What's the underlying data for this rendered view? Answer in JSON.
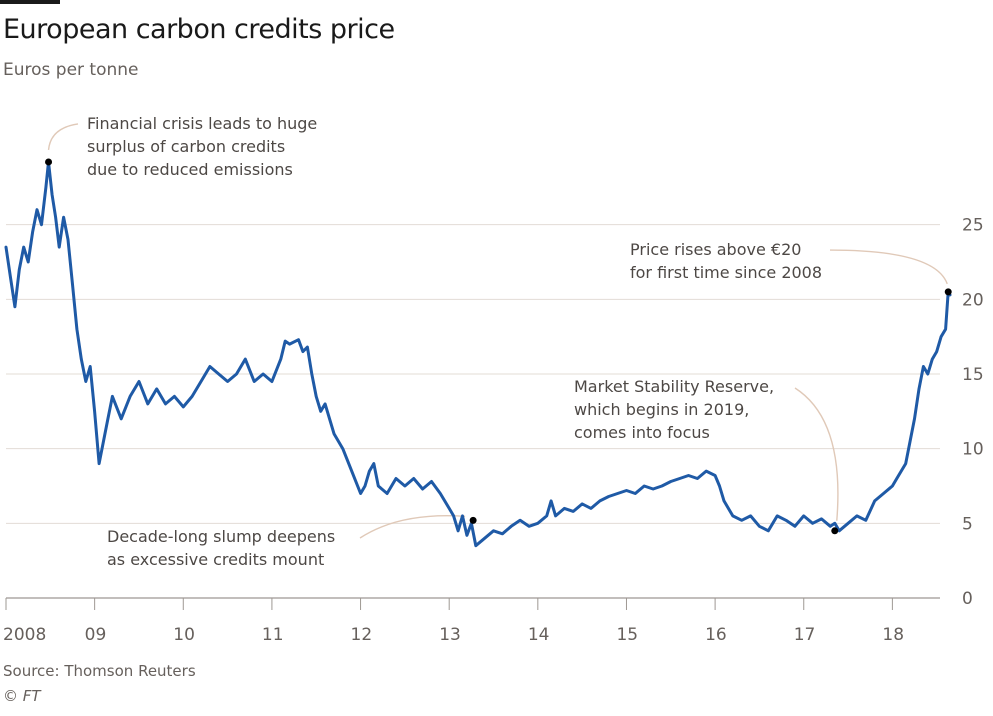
{
  "title": "European carbon credits price",
  "subtitle": "Euros per tonne",
  "source": "Source: Thomson Reuters",
  "copyright": "© FT",
  "colors": {
    "line": "#1f5aa6",
    "grid": "#e3dcd6",
    "axis": "#9e9893",
    "text": "#66605c",
    "annotation_arrow": "#e0c9b8",
    "marker": "#000000"
  },
  "chart_data": {
    "type": "line",
    "title": "European carbon credits price",
    "subtitle": "Euros per tonne",
    "xlabel": "",
    "ylabel": "Euros per tonne",
    "x_tick_labels": [
      "2008",
      "09",
      "10",
      "11",
      "12",
      "13",
      "14",
      "15",
      "16",
      "17",
      "18"
    ],
    "x_tick_values": [
      2008,
      2009,
      2010,
      2011,
      2012,
      2013,
      2014,
      2015,
      2016,
      2017,
      2018
    ],
    "y_ticks": [
      0,
      5,
      10,
      15,
      20,
      25
    ],
    "ylim": [
      0,
      30
    ],
    "xlim": [
      2008.0,
      2018.65
    ],
    "grid": true,
    "series": [
      {
        "name": "",
        "x": [
          2008.0,
          2008.05,
          2008.1,
          2008.15,
          2008.2,
          2008.25,
          2008.3,
          2008.35,
          2008.4,
          2008.45,
          2008.48,
          2008.52,
          2008.56,
          2008.6,
          2008.65,
          2008.7,
          2008.75,
          2008.8,
          2008.85,
          2008.9,
          2008.95,
          2009.0,
          2009.05,
          2009.1,
          2009.15,
          2009.2,
          2009.3,
          2009.4,
          2009.5,
          2009.6,
          2009.7,
          2009.8,
          2009.9,
          2010.0,
          2010.1,
          2010.2,
          2010.3,
          2010.4,
          2010.5,
          2010.6,
          2010.7,
          2010.8,
          2010.9,
          2011.0,
          2011.1,
          2011.15,
          2011.2,
          2011.3,
          2011.35,
          2011.4,
          2011.45,
          2011.5,
          2011.55,
          2011.6,
          2011.7,
          2011.8,
          2011.9,
          2012.0,
          2012.05,
          2012.1,
          2012.15,
          2012.2,
          2012.3,
          2012.4,
          2012.5,
          2012.6,
          2012.7,
          2012.8,
          2012.9,
          2013.0,
          2013.05,
          2013.1,
          2013.15,
          2013.2,
          2013.25,
          2013.3,
          2013.4,
          2013.5,
          2013.6,
          2013.7,
          2013.8,
          2013.9,
          2014.0,
          2014.1,
          2014.15,
          2014.2,
          2014.3,
          2014.4,
          2014.5,
          2014.6,
          2014.7,
          2014.8,
          2014.9,
          2015.0,
          2015.1,
          2015.2,
          2015.3,
          2015.4,
          2015.5,
          2015.6,
          2015.7,
          2015.8,
          2015.9,
          2016.0,
          2016.05,
          2016.1,
          2016.2,
          2016.3,
          2016.4,
          2016.5,
          2016.6,
          2016.7,
          2016.8,
          2016.9,
          2017.0,
          2017.1,
          2017.2,
          2017.3,
          2017.35,
          2017.4,
          2017.5,
          2017.6,
          2017.7,
          2017.8,
          2017.9,
          2018.0,
          2018.05,
          2018.1,
          2018.15,
          2018.2,
          2018.25,
          2018.3,
          2018.35,
          2018.4,
          2018.45,
          2018.5,
          2018.55,
          2018.6,
          2018.63,
          2018.65
        ],
        "values": [
          23.5,
          21.5,
          19.5,
          22.0,
          23.5,
          22.5,
          24.5,
          26.0,
          25.0,
          27.5,
          29.2,
          27.0,
          25.5,
          23.5,
          25.5,
          24.0,
          21.0,
          18.0,
          16.0,
          14.5,
          15.5,
          12.5,
          9.0,
          10.5,
          12.0,
          13.5,
          12.0,
          13.5,
          14.5,
          13.0,
          14.0,
          13.0,
          13.5,
          12.8,
          13.5,
          14.5,
          15.5,
          15.0,
          14.5,
          15.0,
          16.0,
          14.5,
          15.0,
          14.5,
          16.0,
          17.2,
          17.0,
          17.3,
          16.5,
          16.8,
          15.0,
          13.5,
          12.5,
          13.0,
          11.0,
          10.0,
          8.5,
          7.0,
          7.5,
          8.5,
          9.0,
          7.5,
          7.0,
          8.0,
          7.5,
          8.0,
          7.3,
          7.8,
          7.0,
          6.0,
          5.5,
          4.5,
          5.5,
          4.2,
          5.0,
          3.5,
          4.0,
          4.5,
          4.3,
          4.8,
          5.2,
          4.8,
          5.0,
          5.5,
          6.5,
          5.5,
          6.0,
          5.8,
          6.3,
          6.0,
          6.5,
          6.8,
          7.0,
          7.2,
          7.0,
          7.5,
          7.3,
          7.5,
          7.8,
          8.0,
          8.2,
          8.0,
          8.5,
          8.2,
          7.5,
          6.5,
          5.5,
          5.2,
          5.5,
          4.8,
          4.5,
          5.5,
          5.2,
          4.8,
          5.5,
          5.0,
          5.3,
          4.8,
          5.0,
          4.5,
          5.0,
          5.5,
          5.2,
          6.5,
          7.0,
          7.5,
          8.0,
          8.5,
          9.0,
          10.5,
          12.0,
          14.0,
          15.5,
          15.0,
          16.0,
          16.5,
          17.5,
          18.0,
          20.5,
          20.3
        ]
      }
    ],
    "markers": [
      {
        "x": 2008.48,
        "y": 29.2
      },
      {
        "x": 2013.27,
        "y": 5.2
      },
      {
        "x": 2017.35,
        "y": 4.5
      },
      {
        "x": 2018.63,
        "y": 20.5
      }
    ],
    "annotations": [
      {
        "lines": [
          "Financial crisis leads to huge",
          "surplus of carbon credits",
          "due to reduced emissions"
        ]
      },
      {
        "lines": [
          "Price rises above €20",
          "for first time since 2008"
        ]
      },
      {
        "lines": [
          "Market Stability Reserve,",
          "which begins in 2019,",
          "comes into focus"
        ]
      },
      {
        "lines": [
          "Decade-long slump deepens",
          "as excessive credits mount"
        ]
      }
    ]
  }
}
